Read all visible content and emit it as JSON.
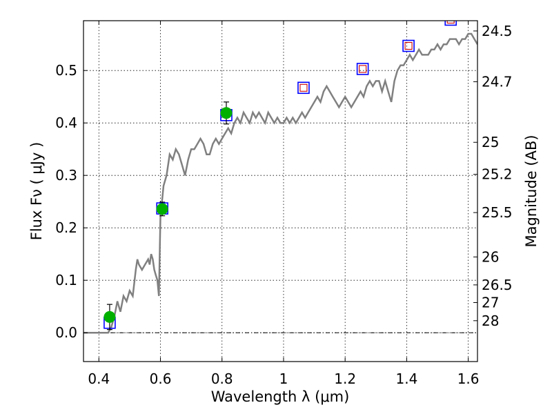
{
  "chart_data": {
    "type": "scatter",
    "xlabel": "Wavelength  λ (μm)",
    "ylabel": "Flux  Fν  ( μJy )",
    "ylabel_right": "Magnitude (AB)",
    "xlim": [
      0.35,
      1.63
    ],
    "ylim": [
      -0.055,
      0.595
    ],
    "grid": true,
    "x_ticks": [
      {
        "value": 0.4,
        "label": "0.4"
      },
      {
        "value": 0.6,
        "label": "0.6"
      },
      {
        "value": 0.8,
        "label": "0.8"
      },
      {
        "value": 1.0,
        "label": "1"
      },
      {
        "value": 1.2,
        "label": "1.2"
      },
      {
        "value": 1.4,
        "label": "1.4"
      },
      {
        "value": 1.6,
        "label": "1.6"
      }
    ],
    "y_ticks": [
      {
        "value": 0.0,
        "label": "0.0"
      },
      {
        "value": 0.1,
        "label": "0.1"
      },
      {
        "value": 0.2,
        "label": "0.2"
      },
      {
        "value": 0.3,
        "label": "0.3"
      },
      {
        "value": 0.4,
        "label": "0.4"
      },
      {
        "value": 0.5,
        "label": "0.5"
      }
    ],
    "magnitude_ticks": [
      {
        "label": "24.5",
        "flux": 0.5754
      },
      {
        "label": "24.7",
        "flux": 0.4786
      },
      {
        "label": "25",
        "flux": 0.3631
      },
      {
        "label": "25.2",
        "flux": 0.302
      },
      {
        "label": "25.5",
        "flux": 0.2291
      },
      {
        "label": "26",
        "flux": 0.1445
      },
      {
        "label": "26.5",
        "flux": 0.0912
      },
      {
        "label": "27",
        "flux": 0.0575
      },
      {
        "label": "28",
        "flux": 0.0229
      }
    ],
    "model_spectrum": {
      "color": "#808080",
      "points": [
        [
          0.35,
          0.0
        ],
        [
          0.43,
          0.0
        ],
        [
          0.44,
          0.01
        ],
        [
          0.45,
          0.03
        ],
        [
          0.46,
          0.06
        ],
        [
          0.47,
          0.04
        ],
        [
          0.48,
          0.07
        ],
        [
          0.49,
          0.06
        ],
        [
          0.5,
          0.08
        ],
        [
          0.51,
          0.07
        ],
        [
          0.52,
          0.12
        ],
        [
          0.525,
          0.14
        ],
        [
          0.53,
          0.13
        ],
        [
          0.54,
          0.12
        ],
        [
          0.55,
          0.13
        ],
        [
          0.56,
          0.14
        ],
        [
          0.565,
          0.13
        ],
        [
          0.57,
          0.15
        ],
        [
          0.575,
          0.14
        ],
        [
          0.58,
          0.12
        ],
        [
          0.585,
          0.11
        ],
        [
          0.59,
          0.1
        ],
        [
          0.595,
          0.07
        ],
        [
          0.6,
          0.22
        ],
        [
          0.61,
          0.28
        ],
        [
          0.62,
          0.3
        ],
        [
          0.63,
          0.34
        ],
        [
          0.64,
          0.33
        ],
        [
          0.65,
          0.35
        ],
        [
          0.66,
          0.34
        ],
        [
          0.67,
          0.32
        ],
        [
          0.68,
          0.3
        ],
        [
          0.69,
          0.33
        ],
        [
          0.7,
          0.35
        ],
        [
          0.71,
          0.35
        ],
        [
          0.72,
          0.36
        ],
        [
          0.73,
          0.37
        ],
        [
          0.74,
          0.36
        ],
        [
          0.75,
          0.34
        ],
        [
          0.76,
          0.34
        ],
        [
          0.77,
          0.36
        ],
        [
          0.78,
          0.37
        ],
        [
          0.79,
          0.36
        ],
        [
          0.8,
          0.37
        ],
        [
          0.81,
          0.38
        ],
        [
          0.82,
          0.39
        ],
        [
          0.83,
          0.38
        ],
        [
          0.84,
          0.4
        ],
        [
          0.85,
          0.41
        ],
        [
          0.86,
          0.4
        ],
        [
          0.87,
          0.42
        ],
        [
          0.88,
          0.41
        ],
        [
          0.89,
          0.4
        ],
        [
          0.9,
          0.42
        ],
        [
          0.91,
          0.41
        ],
        [
          0.92,
          0.42
        ],
        [
          0.93,
          0.41
        ],
        [
          0.94,
          0.4
        ],
        [
          0.95,
          0.42
        ],
        [
          0.96,
          0.41
        ],
        [
          0.97,
          0.4
        ],
        [
          0.98,
          0.41
        ],
        [
          0.99,
          0.4
        ],
        [
          1.0,
          0.4
        ],
        [
          1.01,
          0.41
        ],
        [
          1.02,
          0.4
        ],
        [
          1.03,
          0.41
        ],
        [
          1.04,
          0.4
        ],
        [
          1.05,
          0.41
        ],
        [
          1.06,
          0.42
        ],
        [
          1.07,
          0.41
        ],
        [
          1.08,
          0.42
        ],
        [
          1.09,
          0.43
        ],
        [
          1.1,
          0.44
        ],
        [
          1.11,
          0.45
        ],
        [
          1.12,
          0.44
        ],
        [
          1.13,
          0.46
        ],
        [
          1.14,
          0.47
        ],
        [
          1.15,
          0.46
        ],
        [
          1.16,
          0.45
        ],
        [
          1.17,
          0.44
        ],
        [
          1.18,
          0.43
        ],
        [
          1.19,
          0.44
        ],
        [
          1.2,
          0.45
        ],
        [
          1.21,
          0.44
        ],
        [
          1.22,
          0.43
        ],
        [
          1.23,
          0.44
        ],
        [
          1.24,
          0.45
        ],
        [
          1.25,
          0.46
        ],
        [
          1.26,
          0.45
        ],
        [
          1.27,
          0.47
        ],
        [
          1.28,
          0.48
        ],
        [
          1.29,
          0.47
        ],
        [
          1.3,
          0.48
        ],
        [
          1.31,
          0.48
        ],
        [
          1.32,
          0.46
        ],
        [
          1.33,
          0.48
        ],
        [
          1.34,
          0.46
        ],
        [
          1.35,
          0.44
        ],
        [
          1.36,
          0.48
        ],
        [
          1.37,
          0.5
        ],
        [
          1.38,
          0.51
        ],
        [
          1.39,
          0.51
        ],
        [
          1.4,
          0.52
        ],
        [
          1.41,
          0.53
        ],
        [
          1.42,
          0.52
        ],
        [
          1.43,
          0.53
        ],
        [
          1.44,
          0.54
        ],
        [
          1.45,
          0.53
        ],
        [
          1.46,
          0.53
        ],
        [
          1.47,
          0.53
        ],
        [
          1.48,
          0.54
        ],
        [
          1.49,
          0.54
        ],
        [
          1.5,
          0.55
        ],
        [
          1.51,
          0.54
        ],
        [
          1.52,
          0.55
        ],
        [
          1.53,
          0.55
        ],
        [
          1.54,
          0.56
        ],
        [
          1.55,
          0.56
        ],
        [
          1.56,
          0.56
        ],
        [
          1.57,
          0.55
        ],
        [
          1.58,
          0.56
        ],
        [
          1.59,
          0.56
        ],
        [
          1.6,
          0.57
        ],
        [
          1.61,
          0.57
        ],
        [
          1.62,
          0.56
        ],
        [
          1.63,
          0.55
        ]
      ]
    },
    "model_photometry": {
      "marker": "open-square",
      "edge_color": "#0000ff",
      "points": [
        {
          "x": 0.435,
          "y": 0.019
        },
        {
          "x": 0.606,
          "y": 0.237
        },
        {
          "x": 0.814,
          "y": 0.415
        },
        {
          "x": 1.065,
          "y": 0.467
        },
        {
          "x": 1.257,
          "y": 0.503
        },
        {
          "x": 1.406,
          "y": 0.547
        },
        {
          "x": 1.543,
          "y": 0.597
        }
      ]
    },
    "predicted_points": {
      "marker": "open-square",
      "edge_color": "#cc0000",
      "points": [
        {
          "x": 1.065,
          "y": 0.467
        },
        {
          "x": 1.257,
          "y": 0.503
        },
        {
          "x": 1.406,
          "y": 0.547
        },
        {
          "x": 1.543,
          "y": 0.597
        }
      ]
    },
    "observed": {
      "marker": "filled-circle",
      "color": "#00b000",
      "points": [
        {
          "x": 0.435,
          "y": 0.03,
          "err": 0.024
        },
        {
          "x": 0.606,
          "y": 0.236,
          "err": 0.013
        },
        {
          "x": 0.814,
          "y": 0.419,
          "err": 0.021
        }
      ]
    }
  }
}
